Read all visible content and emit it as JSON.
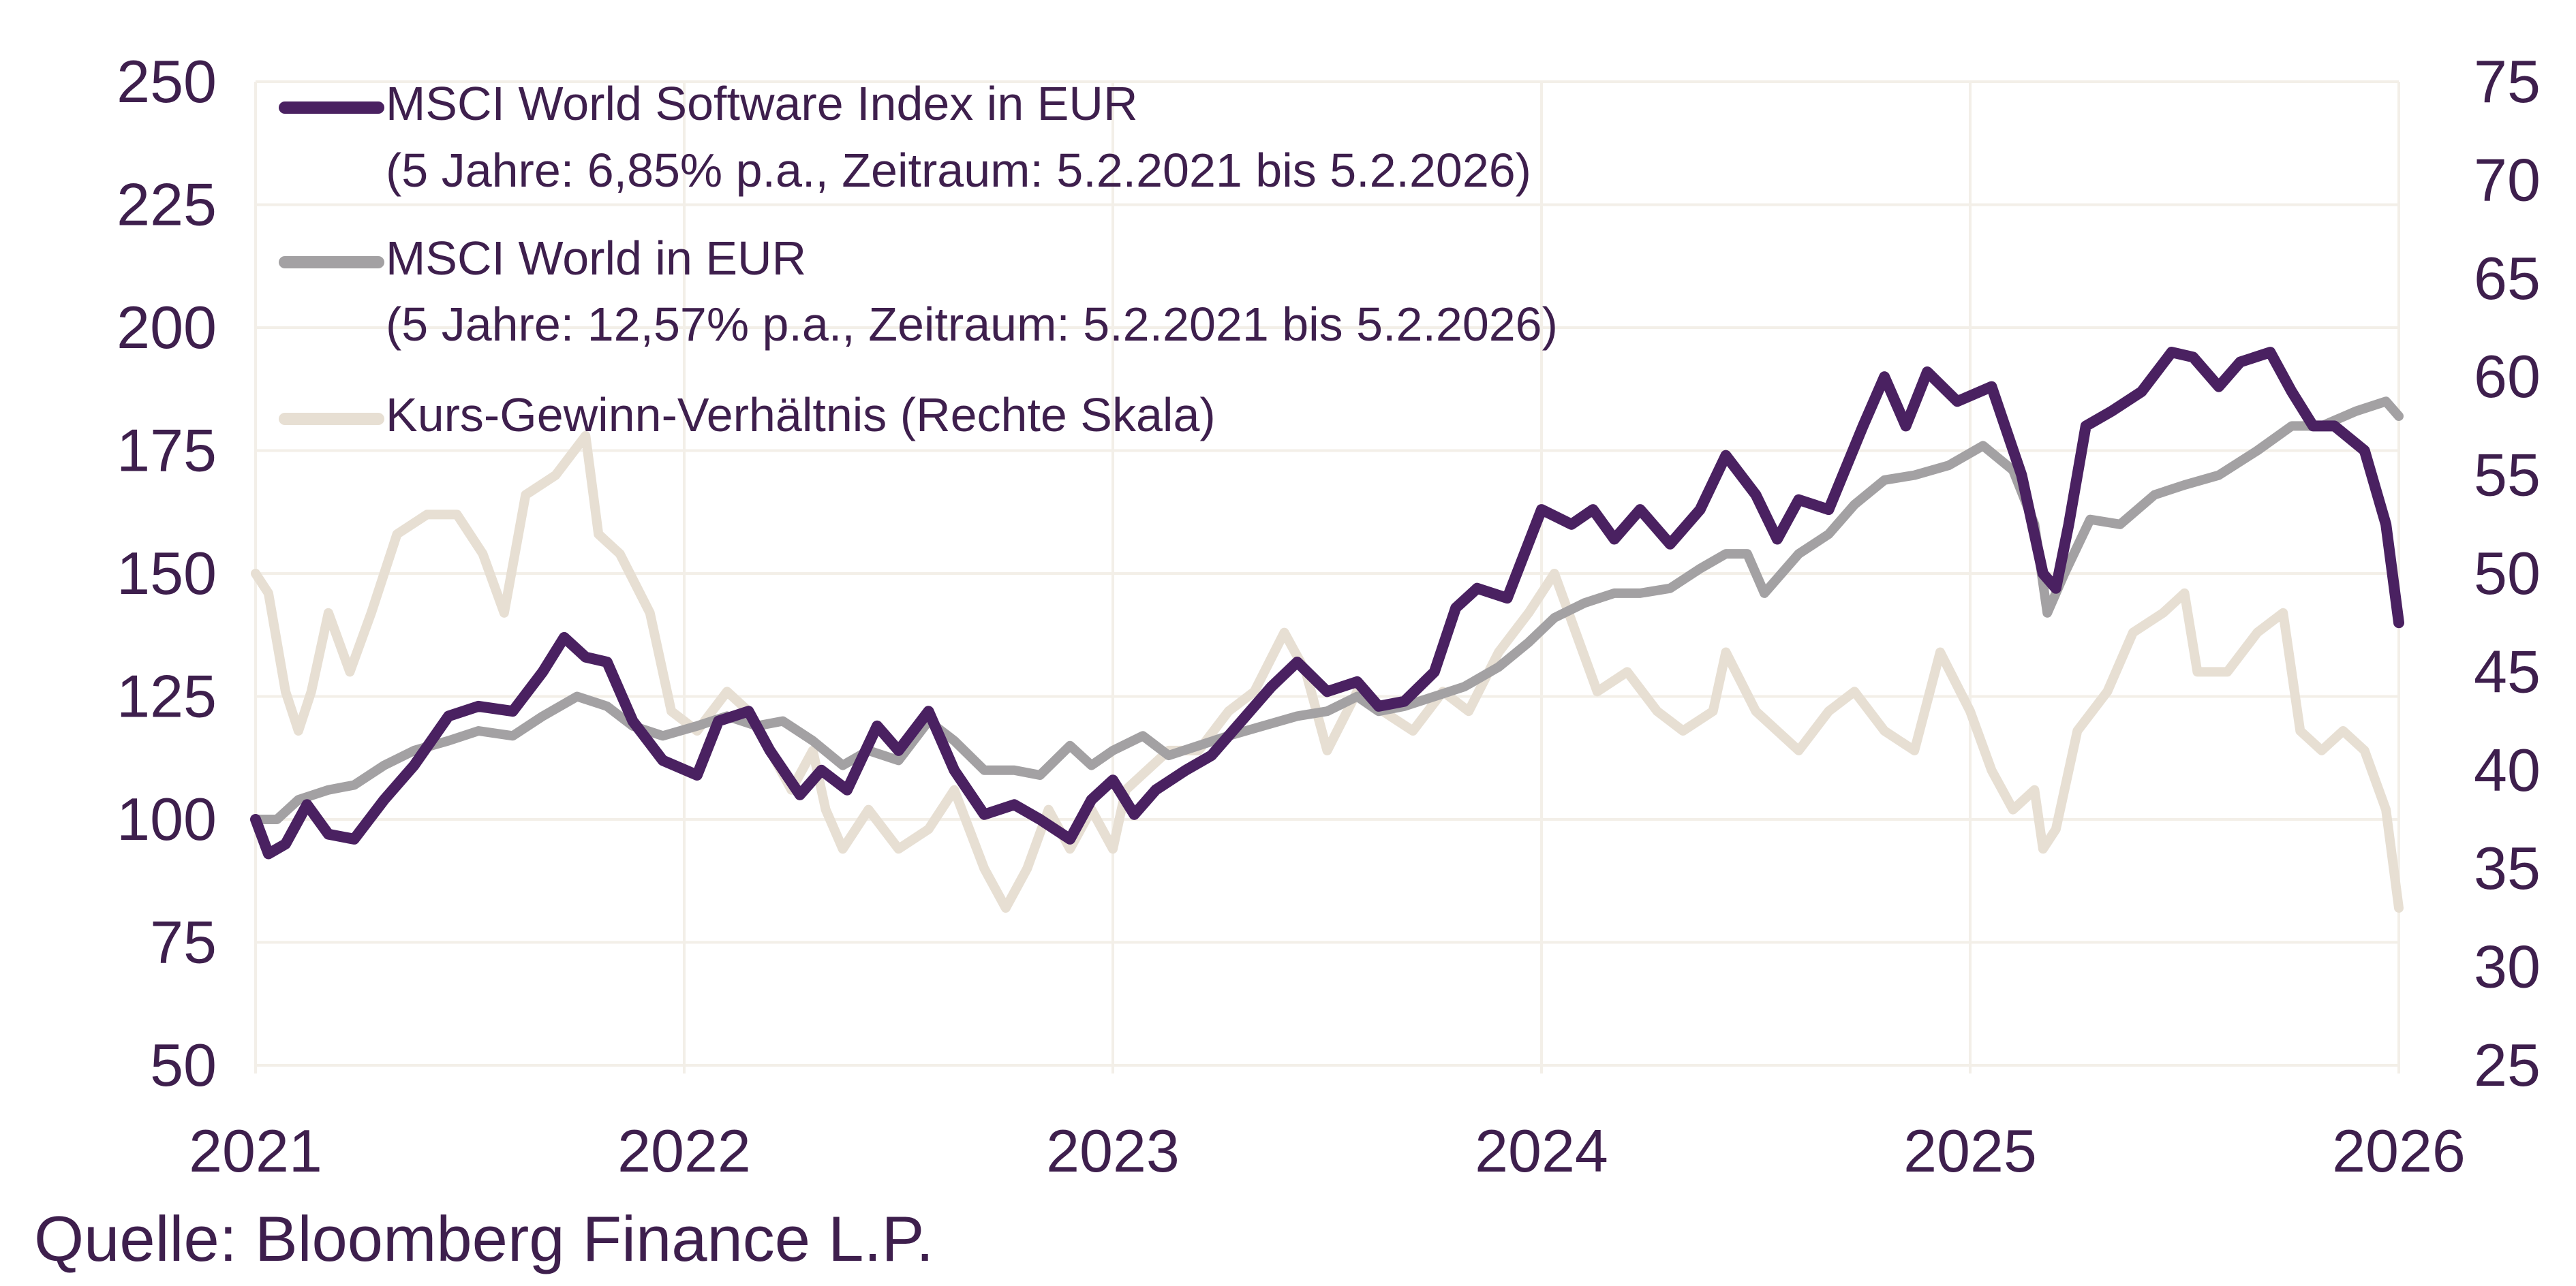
{
  "chart_data": {
    "type": "line",
    "x_axis": {
      "ticks": [
        "2021",
        "2022",
        "2023",
        "2024",
        "2025",
        "2026"
      ],
      "range": [
        2021.0,
        2026.0
      ]
    },
    "y_left": {
      "ticks": [
        "250",
        "225",
        "200",
        "175",
        "150",
        "125",
        "100",
        "75",
        "50"
      ],
      "range": [
        50,
        250
      ]
    },
    "y_right": {
      "ticks": [
        "75",
        "70",
        "65",
        "60",
        "55",
        "50",
        "45",
        "40",
        "35",
        "30",
        "25"
      ],
      "range": [
        25,
        75
      ]
    },
    "grid": true,
    "legend_position": "top-left",
    "series": [
      {
        "name": "MSCI World Software Index in EUR",
        "legend_note": "(5 Jahre: 6,85% p.a., Zeitraum: 5.2.2021 bis 5.2.2026)",
        "axis": "left",
        "color": "#4a2161",
        "points": [
          [
            2021.0,
            100
          ],
          [
            2021.03,
            93
          ],
          [
            2021.07,
            95
          ],
          [
            2021.12,
            103
          ],
          [
            2021.17,
            97
          ],
          [
            2021.23,
            96
          ],
          [
            2021.3,
            104
          ],
          [
            2021.37,
            111
          ],
          [
            2021.45,
            121
          ],
          [
            2021.52,
            123
          ],
          [
            2021.6,
            122
          ],
          [
            2021.67,
            130
          ],
          [
            2021.72,
            137
          ],
          [
            2021.77,
            133
          ],
          [
            2021.82,
            132
          ],
          [
            2021.88,
            120
          ],
          [
            2021.95,
            112
          ],
          [
            2022.03,
            109
          ],
          [
            2022.08,
            120
          ],
          [
            2022.15,
            122
          ],
          [
            2022.2,
            114
          ],
          [
            2022.27,
            105
          ],
          [
            2022.32,
            110
          ],
          [
            2022.38,
            106
          ],
          [
            2022.45,
            119
          ],
          [
            2022.5,
            114
          ],
          [
            2022.57,
            122
          ],
          [
            2022.63,
            110
          ],
          [
            2022.7,
            101
          ],
          [
            2022.77,
            103
          ],
          [
            2022.83,
            100
          ],
          [
            2022.9,
            96
          ],
          [
            2022.95,
            104
          ],
          [
            2023.0,
            108
          ],
          [
            2023.05,
            101
          ],
          [
            2023.1,
            106
          ],
          [
            2023.17,
            110
          ],
          [
            2023.23,
            113
          ],
          [
            2023.3,
            120
          ],
          [
            2023.37,
            127
          ],
          [
            2023.43,
            132
          ],
          [
            2023.5,
            126
          ],
          [
            2023.57,
            128
          ],
          [
            2023.62,
            123
          ],
          [
            2023.68,
            124
          ],
          [
            2023.75,
            130
          ],
          [
            2023.8,
            143
          ],
          [
            2023.85,
            147
          ],
          [
            2023.92,
            145
          ],
          [
            2024.0,
            163
          ],
          [
            2024.07,
            160
          ],
          [
            2024.12,
            163
          ],
          [
            2024.17,
            157
          ],
          [
            2024.23,
            163
          ],
          [
            2024.3,
            156
          ],
          [
            2024.37,
            163
          ],
          [
            2024.43,
            174
          ],
          [
            2024.5,
            166
          ],
          [
            2024.55,
            157
          ],
          [
            2024.6,
            165
          ],
          [
            2024.67,
            163
          ],
          [
            2024.75,
            180
          ],
          [
            2024.8,
            190
          ],
          [
            2024.85,
            180
          ],
          [
            2024.9,
            191
          ],
          [
            2024.97,
            185
          ],
          [
            2025.05,
            188
          ],
          [
            2025.12,
            170
          ],
          [
            2025.17,
            150
          ],
          [
            2025.2,
            147
          ],
          [
            2025.23,
            160
          ],
          [
            2025.27,
            180
          ],
          [
            2025.33,
            183
          ],
          [
            2025.4,
            187
          ],
          [
            2025.47,
            195
          ],
          [
            2025.52,
            194
          ],
          [
            2025.58,
            188
          ],
          [
            2025.63,
            193
          ],
          [
            2025.7,
            195
          ],
          [
            2025.75,
            187
          ],
          [
            2025.8,
            180
          ],
          [
            2025.85,
            180
          ],
          [
            2025.92,
            175
          ],
          [
            2025.97,
            160
          ],
          [
            2026.0,
            140
          ]
        ]
      },
      {
        "name": "MSCI World in EUR",
        "legend_note": "(5 Jahre: 12,57% p.a., Zeitraum: 5.2.2021 bis 5.2.2026)",
        "axis": "left",
        "color": "#a3a1a3",
        "points": [
          [
            2021.0,
            100
          ],
          [
            2021.05,
            100
          ],
          [
            2021.1,
            104
          ],
          [
            2021.17,
            106
          ],
          [
            2021.23,
            107
          ],
          [
            2021.3,
            111
          ],
          [
            2021.37,
            114
          ],
          [
            2021.45,
            116
          ],
          [
            2021.52,
            118
          ],
          [
            2021.6,
            117
          ],
          [
            2021.67,
            121
          ],
          [
            2021.75,
            125
          ],
          [
            2021.82,
            123
          ],
          [
            2021.88,
            119
          ],
          [
            2021.95,
            117
          ],
          [
            2022.03,
            119
          ],
          [
            2022.1,
            121
          ],
          [
            2022.17,
            119
          ],
          [
            2022.23,
            120
          ],
          [
            2022.3,
            116
          ],
          [
            2022.37,
            111
          ],
          [
            2022.43,
            114
          ],
          [
            2022.5,
            112
          ],
          [
            2022.57,
            120
          ],
          [
            2022.63,
            116
          ],
          [
            2022.7,
            110
          ],
          [
            2022.77,
            110
          ],
          [
            2022.83,
            109
          ],
          [
            2022.9,
            115
          ],
          [
            2022.95,
            111
          ],
          [
            2023.0,
            114
          ],
          [
            2023.07,
            117
          ],
          [
            2023.13,
            113
          ],
          [
            2023.2,
            115
          ],
          [
            2023.27,
            117
          ],
          [
            2023.35,
            119
          ],
          [
            2023.43,
            121
          ],
          [
            2023.5,
            122
          ],
          [
            2023.57,
            125
          ],
          [
            2023.62,
            122
          ],
          [
            2023.68,
            123
          ],
          [
            2023.75,
            125
          ],
          [
            2023.82,
            127
          ],
          [
            2023.9,
            131
          ],
          [
            2023.97,
            136
          ],
          [
            2024.03,
            141
          ],
          [
            2024.1,
            144
          ],
          [
            2024.17,
            146
          ],
          [
            2024.23,
            146
          ],
          [
            2024.3,
            147
          ],
          [
            2024.37,
            151
          ],
          [
            2024.43,
            154
          ],
          [
            2024.48,
            154
          ],
          [
            2024.52,
            146
          ],
          [
            2024.6,
            154
          ],
          [
            2024.67,
            158
          ],
          [
            2024.73,
            164
          ],
          [
            2024.8,
            169
          ],
          [
            2024.87,
            170
          ],
          [
            2024.95,
            172
          ],
          [
            2025.03,
            176
          ],
          [
            2025.1,
            171
          ],
          [
            2025.15,
            160
          ],
          [
            2025.18,
            142
          ],
          [
            2025.22,
            150
          ],
          [
            2025.28,
            161
          ],
          [
            2025.35,
            160
          ],
          [
            2025.43,
            166
          ],
          [
            2025.5,
            168
          ],
          [
            2025.58,
            170
          ],
          [
            2025.67,
            175
          ],
          [
            2025.75,
            180
          ],
          [
            2025.82,
            180
          ],
          [
            2025.9,
            183
          ],
          [
            2025.97,
            185
          ],
          [
            2026.0,
            182
          ]
        ]
      },
      {
        "name": "Kurs-Gewinn-Verhältnis (Rechte Skala)",
        "axis": "right",
        "color": "#e7dfd3",
        "points": [
          [
            2021.0,
            50
          ],
          [
            2021.03,
            49
          ],
          [
            2021.07,
            44
          ],
          [
            2021.1,
            42
          ],
          [
            2021.13,
            44
          ],
          [
            2021.17,
            48
          ],
          [
            2021.22,
            45
          ],
          [
            2021.27,
            48
          ],
          [
            2021.33,
            52
          ],
          [
            2021.4,
            53
          ],
          [
            2021.47,
            53
          ],
          [
            2021.53,
            51
          ],
          [
            2021.58,
            48
          ],
          [
            2021.63,
            54
          ],
          [
            2021.7,
            55
          ],
          [
            2021.77,
            57
          ],
          [
            2021.8,
            52
          ],
          [
            2021.85,
            51
          ],
          [
            2021.92,
            48
          ],
          [
            2021.97,
            43
          ],
          [
            2022.03,
            42
          ],
          [
            2022.1,
            44
          ],
          [
            2022.15,
            43
          ],
          [
            2022.2,
            41
          ],
          [
            2022.25,
            39
          ],
          [
            2022.3,
            41
          ],
          [
            2022.33,
            38
          ],
          [
            2022.37,
            36
          ],
          [
            2022.43,
            38
          ],
          [
            2022.5,
            36
          ],
          [
            2022.57,
            37
          ],
          [
            2022.63,
            39
          ],
          [
            2022.7,
            35
          ],
          [
            2022.75,
            33
          ],
          [
            2022.8,
            35
          ],
          [
            2022.85,
            38
          ],
          [
            2022.9,
            36
          ],
          [
            2022.95,
            38
          ],
          [
            2023.0,
            36
          ],
          [
            2023.03,
            39
          ],
          [
            2023.08,
            40
          ],
          [
            2023.13,
            41
          ],
          [
            2023.2,
            41
          ],
          [
            2023.27,
            43
          ],
          [
            2023.33,
            44
          ],
          [
            2023.4,
            47
          ],
          [
            2023.45,
            45
          ],
          [
            2023.5,
            41
          ],
          [
            2023.57,
            44
          ],
          [
            2023.63,
            43
          ],
          [
            2023.7,
            42
          ],
          [
            2023.77,
            44
          ],
          [
            2023.83,
            43
          ],
          [
            2023.9,
            46
          ],
          [
            2023.97,
            48
          ],
          [
            2024.03,
            50
          ],
          [
            2024.08,
            47
          ],
          [
            2024.13,
            44
          ],
          [
            2024.2,
            45
          ],
          [
            2024.27,
            43
          ],
          [
            2024.33,
            42
          ],
          [
            2024.4,
            43
          ],
          [
            2024.43,
            46
          ],
          [
            2024.5,
            43
          ],
          [
            2024.55,
            42
          ],
          [
            2024.6,
            41
          ],
          [
            2024.67,
            43
          ],
          [
            2024.73,
            44
          ],
          [
            2024.8,
            42
          ],
          [
            2024.87,
            41
          ],
          [
            2024.93,
            46
          ],
          [
            2025.0,
            43
          ],
          [
            2025.05,
            40
          ],
          [
            2025.1,
            38
          ],
          [
            2025.15,
            39
          ],
          [
            2025.17,
            36
          ],
          [
            2025.2,
            37
          ],
          [
            2025.25,
            42
          ],
          [
            2025.32,
            44
          ],
          [
            2025.38,
            47
          ],
          [
            2025.45,
            48
          ],
          [
            2025.5,
            49
          ],
          [
            2025.53,
            45
          ],
          [
            2025.6,
            45
          ],
          [
            2025.67,
            47
          ],
          [
            2025.73,
            48
          ],
          [
            2025.77,
            42
          ],
          [
            2025.82,
            41
          ],
          [
            2025.87,
            42
          ],
          [
            2025.92,
            41
          ],
          [
            2025.97,
            38
          ],
          [
            2026.0,
            33
          ]
        ]
      }
    ]
  },
  "source": "Quelle: Bloomberg Finance L.P."
}
